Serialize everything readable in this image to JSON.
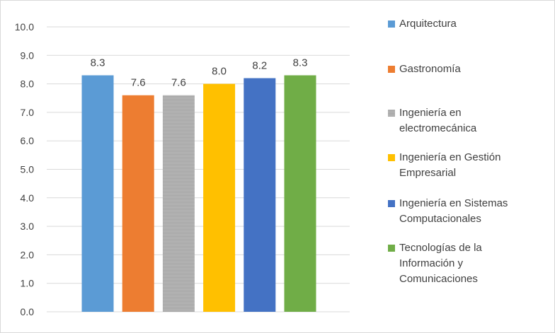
{
  "chart_data": {
    "type": "bar",
    "title": "",
    "xlabel": "",
    "ylabel": "",
    "ylim": [
      0,
      10
    ],
    "yticks": [
      "0.0",
      "1.0",
      "2.0",
      "3.0",
      "4.0",
      "5.0",
      "6.0",
      "7.0",
      "8.0",
      "9.0",
      "10.0"
    ],
    "grid": true,
    "legend_position": "right",
    "series": [
      {
        "name": "Arquitectura",
        "value": 8.3,
        "label": "8.3",
        "color": "#5b9bd5"
      },
      {
        "name": "Gastronomía",
        "value": 7.6,
        "label": "7.6",
        "color": "#ed7d31"
      },
      {
        "name": "Ingeniería en electromecánica",
        "value": 7.6,
        "label": "7.6",
        "color": "#a5a5a5"
      },
      {
        "name": "Ingeniería en Gestión Empresarial",
        "value": 8.0,
        "label": "8.0",
        "color": "#ffc000"
      },
      {
        "name": "Ingeniería en Sistemas Computacionales",
        "value": 8.2,
        "label": "8.2",
        "color": "#4472c4"
      },
      {
        "name": "Tecnologías de la Información y Comunicaciones",
        "value": 8.3,
        "label": "8.3",
        "color": "#70ad47"
      }
    ]
  }
}
